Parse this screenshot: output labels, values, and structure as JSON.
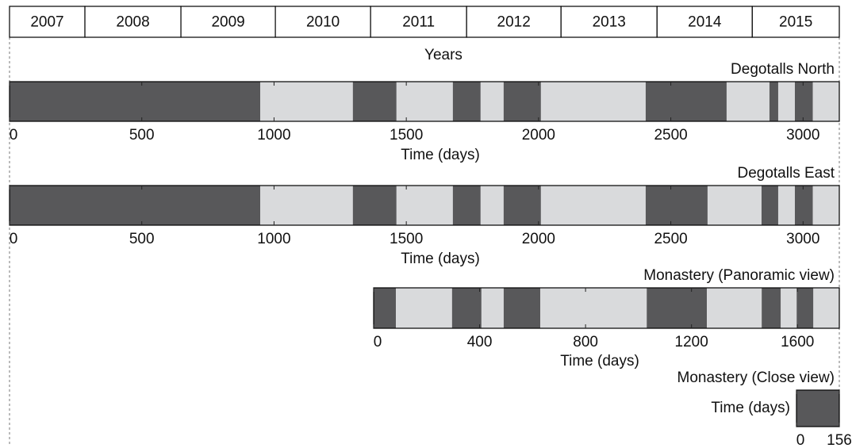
{
  "chart_data": [
    {
      "type": "years",
      "xlabel": "Years",
      "categories": [
        "2007",
        "2008",
        "2009",
        "2010",
        "2011",
        "2012",
        "2013",
        "2014",
        "2015"
      ],
      "edges": [
        0,
        285,
        648,
        1005,
        1365,
        1728,
        2085,
        2448,
        2808,
        3137
      ],
      "xlim": [
        0,
        3137
      ]
    },
    {
      "type": "timeline",
      "title": "Degotalls North",
      "xlabel": "Time (days)",
      "edges": [
        0,
        948,
        1298,
        1463,
        1676,
        1781,
        1868,
        2009,
        2405,
        2711,
        2873,
        2906,
        2969,
        3037,
        3137
      ],
      "segment_colors": [
        "#58585a",
        "#d9dadc",
        "#58585a",
        "#d9dadc",
        "#58585a",
        "#d9dadc",
        "#58585a",
        "#d9dadc",
        "#58585a",
        "#d9dadc",
        "#58585a",
        "#d9dadc",
        "#58585a",
        "#d9dadc"
      ],
      "xlim": [
        0,
        3137
      ],
      "xticks": [
        0,
        500,
        1000,
        1500,
        2000,
        2500,
        3000
      ]
    },
    {
      "type": "timeline",
      "title": "Degotalls East",
      "xlabel": "Time (days)",
      "edges": [
        0,
        948,
        1298,
        1463,
        1676,
        1781,
        1868,
        2009,
        2405,
        2639,
        2843,
        2906,
        2969,
        3037,
        3137
      ],
      "segment_colors": [
        "#58585a",
        "#d9dadc",
        "#58585a",
        "#d9dadc",
        "#58585a",
        "#d9dadc",
        "#58585a",
        "#d9dadc",
        "#58585a",
        "#d9dadc",
        "#58585a",
        "#d9dadc",
        "#58585a",
        "#d9dadc"
      ],
      "xlim": [
        0,
        3137
      ],
      "xticks": [
        0,
        500,
        1000,
        1500,
        2000,
        2500,
        3000
      ]
    },
    {
      "type": "timeline",
      "title": "Monastery (Panoramic view)",
      "xlabel": "Time (days)",
      "edges": [
        0,
        84,
        296,
        407,
        491,
        629,
        1031,
        1258,
        1465,
        1537,
        1597,
        1660,
        1758
      ],
      "segment_colors": [
        "#58585a",
        "#d9dadc",
        "#58585a",
        "#d9dadc",
        "#58585a",
        "#d9dadc",
        "#58585a",
        "#d9dadc",
        "#58585a",
        "#d9dadc",
        "#58585a",
        "#d9dadc"
      ],
      "xlim": [
        0,
        1758
      ],
      "xticks": [
        0,
        400,
        800,
        1200,
        1600
      ]
    },
    {
      "type": "timeline",
      "title": "Monastery (Close view)",
      "xlabel": "Time (days)",
      "edges": [
        0,
        156
      ],
      "segment_colors": [
        "#58585a"
      ],
      "xlim": [
        0,
        156
      ],
      "xticks": [
        0,
        156
      ]
    }
  ]
}
